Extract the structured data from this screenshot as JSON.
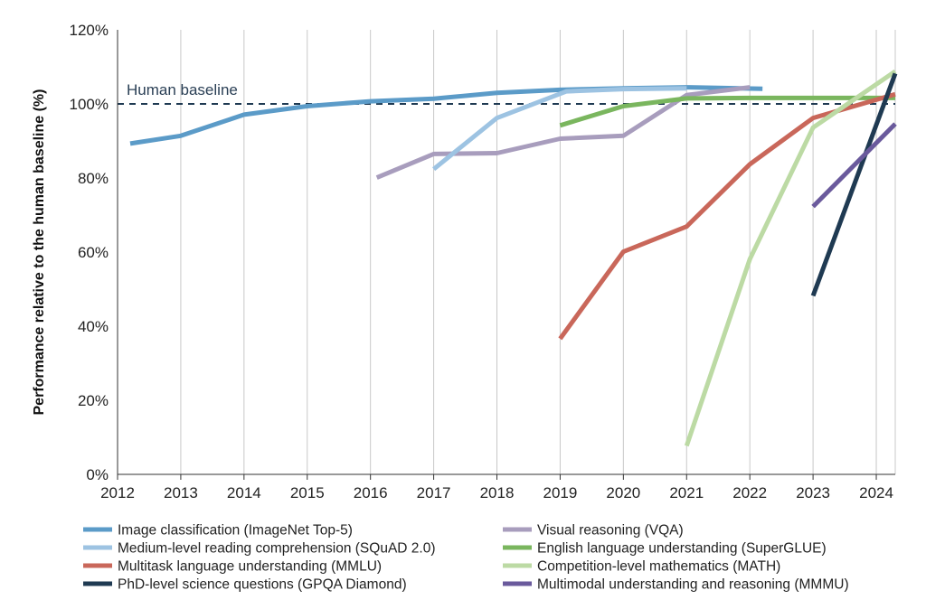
{
  "chart_data": {
    "type": "line",
    "title": "",
    "xlabel": "",
    "ylabel": "Performance relative to the human baseline (%)",
    "xlim": [
      2012,
      2024.3
    ],
    "ylim": [
      0,
      120
    ],
    "x_ticks": [
      2012,
      2013,
      2014,
      2015,
      2016,
      2017,
      2018,
      2019,
      2020,
      2021,
      2022,
      2023,
      2024
    ],
    "y_ticks": [
      0,
      20,
      40,
      60,
      80,
      100,
      120
    ],
    "y_tick_suffix": "%",
    "grid": "vertical",
    "legend_position": "bottom",
    "reference_line": {
      "y": 100,
      "label": "Human baseline"
    },
    "series": [
      {
        "name": "Image classification (ImageNet Top-5)",
        "color": "#5b9bc8",
        "x": [
          2012.2,
          2013,
          2014,
          2015,
          2016,
          2017,
          2018,
          2019,
          2020,
          2021,
          2022.2
        ],
        "y": [
          89.3,
          91.4,
          97.1,
          99.4,
          100.7,
          101.4,
          103,
          103.8,
          104.2,
          104.5,
          104.1
        ]
      },
      {
        "name": "Visual reasoning (VQA)",
        "color": "#a89dbd",
        "x": [
          2016.1,
          2017,
          2018,
          2019,
          2020,
          2021,
          2022
        ],
        "y": [
          80.1,
          86.5,
          86.7,
          90.6,
          91.4,
          102.4,
          104.5
        ]
      },
      {
        "name": "Medium-level reading comprehension (SQuAD 2.0)",
        "color": "#9dc3e2",
        "x": [
          2017,
          2018,
          2019.1,
          2020,
          2021
        ],
        "y": [
          82.4,
          96.2,
          103.4,
          104,
          104.2
        ]
      },
      {
        "name": "English language understanding (SuperGLUE)",
        "color": "#7ab65e",
        "x": [
          2019,
          2020,
          2021,
          2022,
          2023,
          2024.3
        ],
        "y": [
          94.2,
          99.4,
          101.5,
          101.6,
          101.6,
          101.6
        ]
      },
      {
        "name": "Multitask language understanding (MMLU)",
        "color": "#c9675a",
        "x": [
          2019,
          2020,
          2021,
          2022,
          2023,
          2024.3
        ],
        "y": [
          36.6,
          60.1,
          66.9,
          83.7,
          96.2,
          102.6
        ]
      },
      {
        "name": "Competition-level mathematics (MATH)",
        "color": "#bcdaa4",
        "x": [
          2021,
          2022,
          2023,
          2024.3
        ],
        "y": [
          7.7,
          58.1,
          93.6,
          108.8
        ]
      },
      {
        "name": "PhD-level science questions (GPQA Diamond)",
        "color": "#1f3a52",
        "x": [
          2023,
          2024.3
        ],
        "y": [
          48.2,
          108.2
        ]
      },
      {
        "name": "Multimodal understanding and reasoning (MMMU)",
        "color": "#6a5a9c",
        "x": [
          2023,
          2024.3
        ],
        "y": [
          72.3,
          94.6
        ]
      }
    ]
  }
}
